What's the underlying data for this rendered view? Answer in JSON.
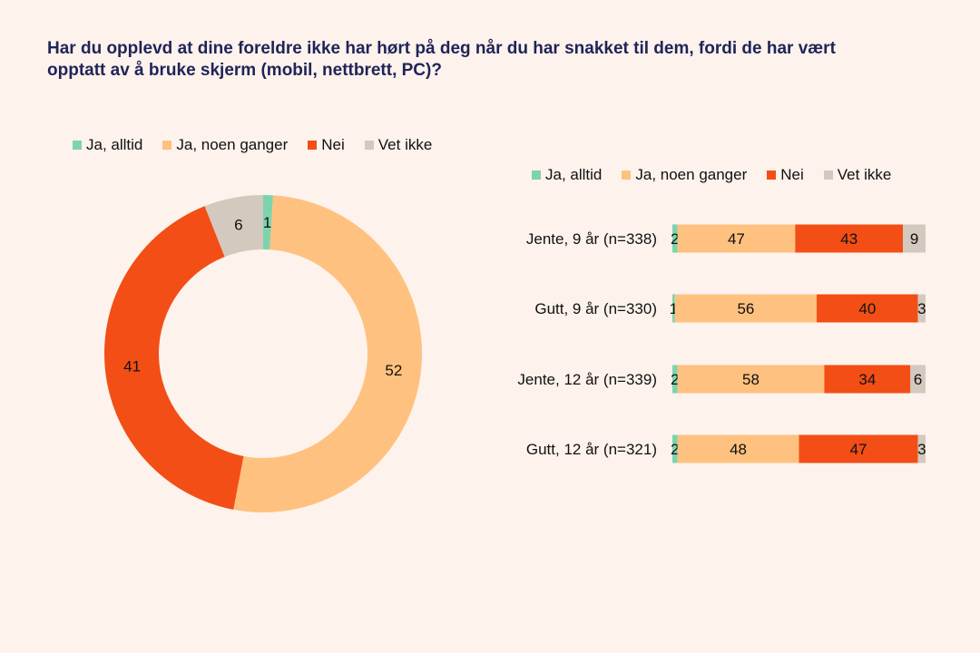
{
  "title": "Har du opplevd at dine foreldre ikke har hørt på deg når du har snakket til dem, fordi de har vært opptatt av å bruke skjerm (mobil, nettbrett, PC)?",
  "colors": {
    "Ja, alltid": "#7dd3ae",
    "Ja, noen ganger": "#ffc17f",
    "Nei": "#f24e16",
    "Vet ikke": "#d3c9be"
  },
  "chart_data": [
    {
      "type": "pie",
      "variant": "donut",
      "legend_position": "top",
      "categories": [
        "Ja, alltid",
        "Ja, noen ganger",
        "Nei",
        "Vet ikke"
      ],
      "values": [
        1,
        52,
        41,
        6
      ]
    },
    {
      "type": "bar",
      "orientation": "horizontal",
      "stacked": true,
      "legend_position": "top",
      "categories": [
        "Jente, 9 år (n=338)",
        "Gutt, 9 år (n=330)",
        "Jente, 12 år (n=339)",
        "Gutt, 12 år (n=321)"
      ],
      "series": [
        {
          "name": "Ja, alltid",
          "values": [
            2,
            1,
            2,
            2
          ]
        },
        {
          "name": "Ja, noen ganger",
          "values": [
            47,
            56,
            58,
            48
          ]
        },
        {
          "name": "Nei",
          "values": [
            43,
            40,
            34,
            47
          ]
        },
        {
          "name": "Vet ikke",
          "values": [
            9,
            3,
            6,
            3
          ]
        }
      ]
    }
  ]
}
